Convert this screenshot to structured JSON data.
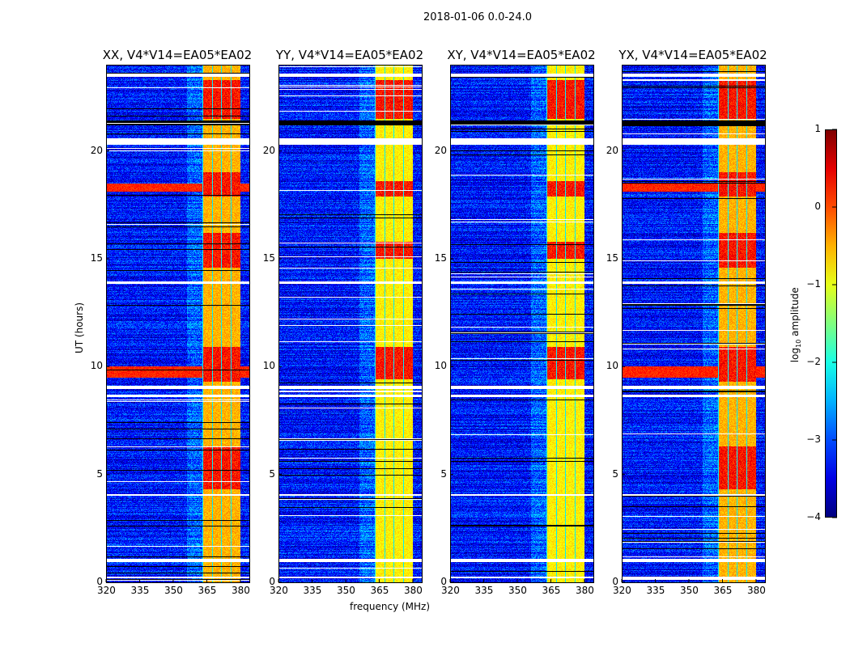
{
  "chart_data": {
    "type": "heatmap",
    "suptitle": "2018-01-06 0.0-24.0",
    "panels": [
      {
        "title": "XX, V4*V14=EA05*EA02",
        "band_level": -0.5,
        "hot": true
      },
      {
        "title": "YY, V4*V14=EA05*EA02",
        "band_level": -0.8,
        "hot": false
      },
      {
        "title": "XY, V4*V14=EA05*EA02",
        "band_level": -0.8,
        "hot": false
      },
      {
        "title": "YX, V4*V14=EA05*EA02",
        "band_level": -0.5,
        "hot": true
      }
    ],
    "xlabel": "frequency (MHz)",
    "ylabel": "UT (hours)",
    "xlim": [
      320,
      384
    ],
    "ylim": [
      0,
      24
    ],
    "xticks": [
      "320",
      "335",
      "350",
      "365",
      "380"
    ],
    "xtick_values": [
      320,
      335,
      350,
      365,
      380
    ],
    "yticks": [
      "0",
      "5",
      "10",
      "15",
      "20"
    ],
    "ytick_values": [
      0,
      5,
      10,
      15,
      20
    ],
    "rfi_band_mhz": [
      363,
      380
    ],
    "background_level": -3.3,
    "flagged_hours": [
      [
        23.45,
        23.6
      ],
      [
        20.3,
        20.6
      ],
      [
        13.85,
        13.95
      ],
      [
        8.95,
        9.1
      ],
      [
        8.6,
        8.7
      ],
      [
        4.0,
        4.1
      ],
      [
        0.95,
        1.1
      ],
      [
        0.2,
        0.25
      ]
    ],
    "hot_hours": [
      [
        21.5,
        23.3
      ],
      [
        17.9,
        19.0
      ],
      [
        14.6,
        16.2
      ],
      [
        9.3,
        10.9
      ],
      [
        4.3,
        6.3
      ]
    ],
    "colorbar": {
      "label": "log10 amplitude",
      "label_base": "log",
      "label_sub": "10",
      "label_rest": " amplitude",
      "colormap": "jet",
      "range": [
        -4,
        1
      ],
      "ticks": [
        "1",
        "0",
        "−1",
        "−2",
        "−3",
        "−4"
      ],
      "tick_values": [
        1,
        0,
        -1,
        -2,
        -3,
        -4
      ]
    }
  }
}
